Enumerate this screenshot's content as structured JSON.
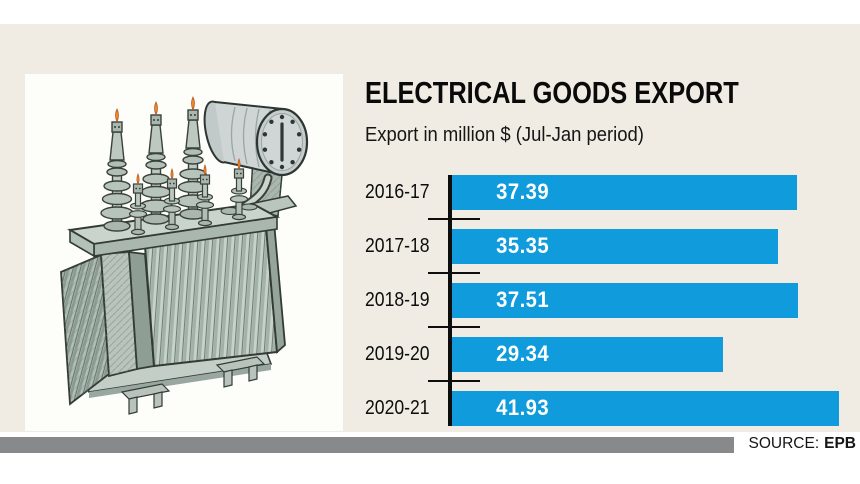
{
  "page": {
    "background": "#ffffff",
    "card_background": "#f0ece3"
  },
  "chart_data": {
    "type": "bar",
    "orientation": "horizontal",
    "title": "ELECTRICAL GOODS EXPORT",
    "subtitle": "Export in million $ (Jul-Jan period)",
    "categories": [
      "2016-17",
      "2017-18",
      "2018-19",
      "2019-20",
      "2020-21"
    ],
    "values": [
      37.39,
      35.35,
      37.51,
      29.34,
      41.93
    ],
    "xlim": [
      0,
      42.4
    ],
    "grid": false,
    "legend": false,
    "bar_color": "#109cdc",
    "value_label_color": "#ffffff",
    "axis_color": "#0d0d0d"
  },
  "illustration": {
    "name": "electrical-transformer",
    "panel_background": "#fdfdfa"
  },
  "footer": {
    "source_label": "SOURCE:",
    "source_value": "EPB",
    "bar_color": "#87898b"
  }
}
